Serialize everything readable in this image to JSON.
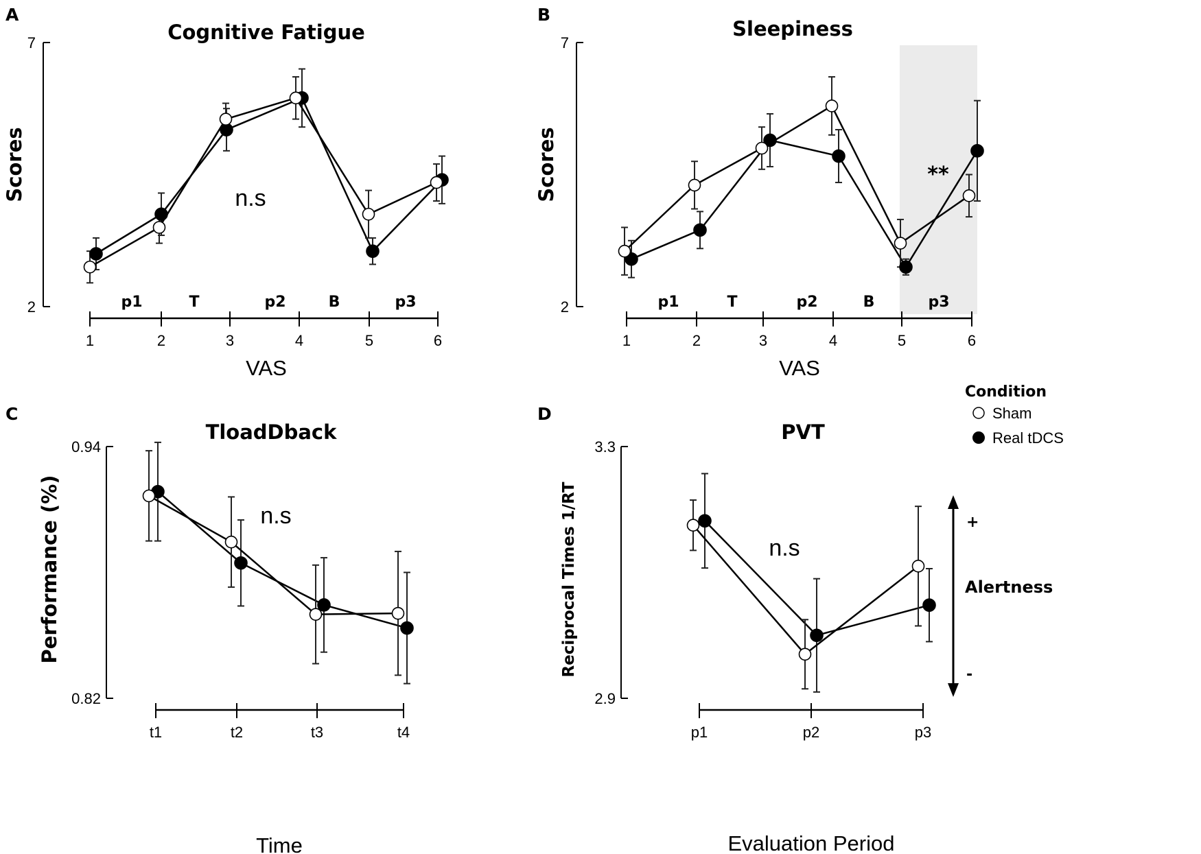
{
  "chart_data": [
    {
      "type": "line",
      "panel": "A",
      "title": "Cognitive Fatigue",
      "xlabel": "VAS",
      "ylabel": "Scores",
      "categories": [
        "1",
        "2",
        "3",
        "4",
        "5",
        "6"
      ],
      "ylim": [
        2,
        7
      ],
      "yticks": [
        "7",
        "2"
      ],
      "annotation": "n.s",
      "periods": [
        "p1",
        "T",
        "p2",
        "B",
        "p3"
      ],
      "series": [
        {
          "name": "Sham",
          "values": [
            2.75,
            3.5,
            5.55,
            5.95,
            3.75,
            4.35
          ],
          "errors": [
            0.3,
            0.3,
            0.3,
            0.4,
            0.45,
            0.35
          ]
        },
        {
          "name": "Real tDCS",
          "values": [
            3.0,
            3.75,
            5.35,
            5.95,
            3.05,
            4.4
          ],
          "errors": [
            0.3,
            0.4,
            0.4,
            0.55,
            0.25,
            0.45
          ]
        }
      ]
    },
    {
      "type": "line",
      "panel": "B",
      "title": "Sleepiness",
      "xlabel": "VAS",
      "ylabel": "Scores",
      "categories": [
        "1",
        "2",
        "3",
        "4",
        "5",
        "6"
      ],
      "ylim": [
        2,
        7
      ],
      "yticks": [
        "7",
        "2"
      ],
      "annotation": "**",
      "highlight_period": "p3",
      "periods": [
        "p1",
        "T",
        "p2",
        "B",
        "p3"
      ],
      "series": [
        {
          "name": "Sham",
          "values": [
            3.05,
            4.3,
            5.0,
            5.8,
            3.2,
            4.1
          ],
          "errors": [
            0.45,
            0.45,
            0.4,
            0.55,
            0.45,
            0.4
          ]
        },
        {
          "name": "Real tDCS",
          "values": [
            2.9,
            3.45,
            5.15,
            4.85,
            2.75,
            4.95
          ],
          "errors": [
            0.35,
            0.35,
            0.5,
            0.5,
            0.15,
            0.95
          ]
        }
      ]
    },
    {
      "type": "line",
      "panel": "C",
      "title": "TloadDback",
      "xlabel": "Time",
      "ylabel": "Performance (%)",
      "categories": [
        "t1",
        "t2",
        "t3",
        "t4"
      ],
      "ylim": [
        0.82,
        0.94
      ],
      "yticks": [
        "0.94",
        "0.82"
      ],
      "annotation": "n.s",
      "series": [
        {
          "name": "Sham",
          "values": [
            0.9165,
            0.8945,
            0.86,
            0.8605
          ],
          "errors": [
            0.0215,
            0.0215,
            0.0235,
            0.0295
          ]
        },
        {
          "name": "Real tDCS",
          "values": [
            0.9185,
            0.8845,
            0.8645,
            0.8535
          ],
          "errors": [
            0.0235,
            0.0205,
            0.0225,
            0.0265
          ]
        }
      ]
    },
    {
      "type": "line",
      "panel": "D",
      "title": "PVT",
      "xlabel": "Evaluation Period",
      "ylabel": "Reciprocal Times 1/RT",
      "categories": [
        "p1",
        "p2",
        "p3"
      ],
      "ylim": [
        2.9,
        3.3
      ],
      "yticks": [
        "3.3",
        "2.9"
      ],
      "annotation": "n.s",
      "side_axis": {
        "label": "Alertness",
        "top": "+",
        "bottom": "-"
      },
      "series": [
        {
          "name": "Sham",
          "values": [
            3.175,
            2.97,
            3.11
          ],
          "errors": [
            0.04,
            0.055,
            0.095
          ]
        },
        {
          "name": "Real tDCS",
          "values": [
            3.182,
            3.0,
            3.048
          ],
          "errors": [
            0.075,
            0.09,
            0.058
          ]
        }
      ]
    }
  ],
  "legend": {
    "title": "Condition",
    "items": [
      {
        "label": "Sham",
        "fill": "#ffffff"
      },
      {
        "label": "Real tDCS",
        "fill": "#000000"
      }
    ]
  }
}
